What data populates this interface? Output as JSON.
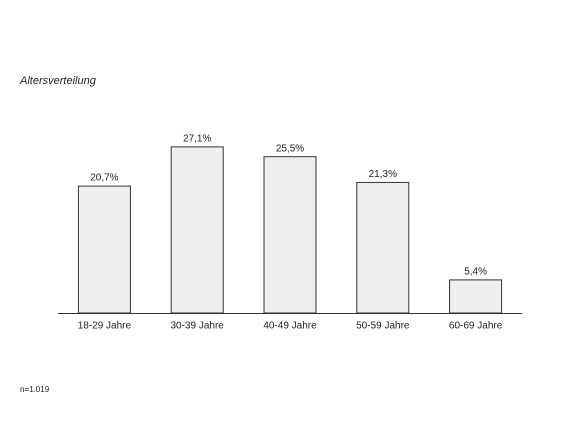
{
  "chart_data": {
    "type": "bar",
    "title": "Altersverteilung",
    "categories": [
      "18-29 Jahre",
      "30-39 Jahre",
      "40-49 Jahre",
      "50-59 Jahre",
      "60-69 Jahre"
    ],
    "values": [
      20.7,
      27.1,
      25.5,
      21.3,
      5.4
    ],
    "value_labels": [
      "20,7%",
      "27,1%",
      "25,5%",
      "21,3%",
      "5,4%"
    ],
    "color": "#eef0f0",
    "note": "n=1.019"
  }
}
